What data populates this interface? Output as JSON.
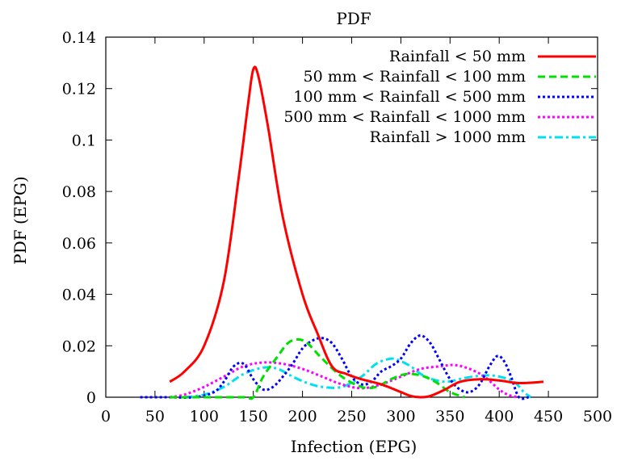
{
  "chart_data": {
    "type": "line",
    "title": "PDF",
    "xlabel": "Infection (EPG)",
    "ylabel": "PDF (EPG)",
    "xlim": [
      0,
      500
    ],
    "ylim": [
      0,
      0.14
    ],
    "xticks": [
      "0",
      "50",
      "100",
      "150",
      "200",
      "250",
      "300",
      "350",
      "400",
      "450",
      "500"
    ],
    "yticks": [
      "0",
      "0.02",
      "0.04",
      "0.06",
      "0.08",
      "0.1",
      "0.12",
      "0.14"
    ],
    "legend_position": "top-right",
    "grid": false,
    "series": [
      {
        "name": "Rainfall < 50 mm",
        "color": "#ff0000",
        "dash": "solid",
        "x": [
          65,
          80,
          100,
          120,
          135,
          145,
          150,
          155,
          165,
          180,
          200,
          215,
          230,
          245,
          260,
          280,
          300,
          310,
          320,
          330,
          345,
          360,
          380,
          400,
          420,
          445
        ],
        "y": [
          0.006,
          0.01,
          0.02,
          0.045,
          0.085,
          0.115,
          0.1275,
          0.125,
          0.105,
          0.07,
          0.04,
          0.025,
          0.012,
          0.009,
          0.007,
          0.005,
          0.002,
          0.0005,
          0.0,
          0.0005,
          0.003,
          0.006,
          0.007,
          0.0065,
          0.0055,
          0.006
        ]
      },
      {
        "name": "50 mm < Rainfall < 100 mm",
        "color": "#00e000",
        "dash": "dashed",
        "x": [
          65,
          100,
          140,
          150,
          160,
          175,
          185,
          195,
          205,
          220,
          240,
          260,
          275,
          290,
          305,
          320,
          335,
          350,
          365
        ],
        "y": [
          0.0,
          0.0,
          0.0,
          0.0,
          0.008,
          0.016,
          0.021,
          0.0225,
          0.021,
          0.015,
          0.008,
          0.004,
          0.004,
          0.007,
          0.009,
          0.0085,
          0.006,
          0.002,
          0.0
        ]
      },
      {
        "name": "100 mm < Rainfall < 500 mm",
        "color": "#0000ff",
        "dash": "dotted",
        "x": [
          35,
          60,
          90,
          110,
          120,
          130,
          140,
          150,
          160,
          170,
          180,
          190,
          200,
          210,
          220,
          230,
          240,
          250,
          260,
          270,
          280,
          290,
          300,
          310,
          320,
          330,
          340,
          350,
          360,
          370,
          380,
          390,
          398,
          405,
          412,
          420,
          430
        ],
        "y": [
          0.0,
          0.0,
          0.0,
          0.002,
          0.006,
          0.012,
          0.013,
          0.007,
          0.003,
          0.004,
          0.008,
          0.013,
          0.019,
          0.022,
          0.023,
          0.021,
          0.015,
          0.008,
          0.005,
          0.006,
          0.01,
          0.012,
          0.015,
          0.021,
          0.024,
          0.021,
          0.014,
          0.007,
          0.003,
          0.002,
          0.005,
          0.012,
          0.016,
          0.014,
          0.008,
          0.0,
          0.0
        ]
      },
      {
        "name": "500 mm < Rainfall < 1000 mm",
        "color": "#ff00ff",
        "dash": "dotted",
        "x": [
          65,
          80,
          100,
          120,
          140,
          160,
          180,
          200,
          220,
          240,
          260,
          280,
          300,
          320,
          340,
          355,
          370,
          385,
          400,
          410,
          420
        ],
        "y": [
          0.0,
          0.001,
          0.004,
          0.008,
          0.012,
          0.0135,
          0.013,
          0.011,
          0.008,
          0.005,
          0.0035,
          0.005,
          0.008,
          0.011,
          0.012,
          0.0125,
          0.011,
          0.008,
          0.003,
          0.0008,
          0.0
        ]
      },
      {
        "name": "Rainfall > 1000 mm",
        "color": "#00e0f0",
        "dash": "dashdot",
        "x": [
          80,
          100,
          120,
          140,
          160,
          175,
          190,
          205,
          220,
          240,
          260,
          275,
          290,
          300,
          310,
          325,
          345,
          365,
          385,
          400,
          415,
          425,
          432
        ],
        "y": [
          0.0,
          0.001,
          0.004,
          0.009,
          0.0115,
          0.011,
          0.008,
          0.0055,
          0.004,
          0.004,
          0.008,
          0.013,
          0.015,
          0.014,
          0.012,
          0.008,
          0.006,
          0.0075,
          0.0085,
          0.008,
          0.006,
          0.002,
          0.0
        ]
      }
    ]
  }
}
